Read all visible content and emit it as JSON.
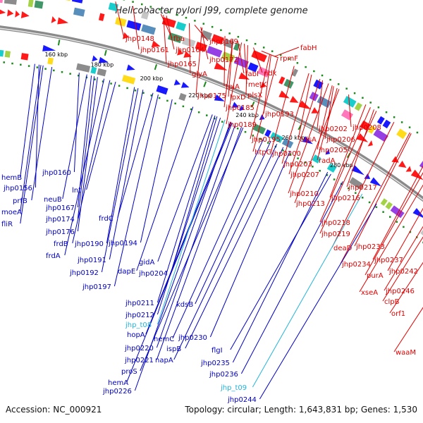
{
  "title": "Helicobacter pylori J99, complete genome",
  "footer": {
    "accession": "Accession: NC_000921",
    "summary": "Topology: circular; Length: 1,643,831 bp; Genes: 1,530"
  },
  "colors": {
    "forward_label": "#e00000",
    "reverse_label": "#0000c0",
    "rna_label": "#22b4d8",
    "backbone": "#8a8a8a",
    "tick": "#1a8a1a"
  },
  "ticks": [
    "160 kbp",
    "180 kbp",
    "200 kbp",
    "220 kbp",
    "240 kbp",
    "260 kbp",
    "280 kbp"
  ],
  "forward_genes": [
    "jhp0148",
    "fba",
    "jhp0161",
    "jhp0164",
    "jhp0169",
    "jhp0165",
    "jhp0172",
    "glyA",
    "fabH",
    "rpmF",
    "fabI",
    "ndk",
    "metK",
    "tpiA",
    "lpxD",
    "plsX",
    "jhp0175",
    "jhp0185",
    "jhp0193",
    "jhp0189",
    "jhp0195",
    "cdsA",
    "jhp0202",
    "jhp0208",
    "htpG",
    "jhp0200",
    "jhp0206",
    "jhp0205",
    "jhp0203",
    "radA",
    "jhp0207",
    "jhp0210",
    "jhp0217",
    "jhp0216",
    "jhp0213",
    "jhp0218",
    "jhp0219",
    "deaD",
    "jhp0233",
    "jhp0234",
    "jhp0237",
    "purA",
    "jhp0242",
    "xseA",
    "jhp0246",
    "clpB",
    "orf1",
    "waaM"
  ],
  "reverse_genes": [
    "jhp0160",
    "hemB",
    "jhp0156",
    "lnt",
    "neuB",
    "prfB",
    "jhp0167",
    "moeA",
    "fliR",
    "jhp0174",
    "jhp0176",
    "frdC",
    "frdB",
    "jhp0190",
    "jhp0194",
    "frdA",
    "jhp0191",
    "dapE",
    "gidA",
    "jhp0192",
    "jhp0204",
    "jhp0197",
    "jhp0211",
    "kdsB",
    "jhp0212",
    "hopA",
    "hemC",
    "jhp0230",
    "jhp0220",
    "ispB",
    "flgI",
    "jhp0221",
    "napA",
    "jhp0235",
    "proS",
    "jhp0236",
    "hemA",
    "jhp0226",
    "jhp0244"
  ],
  "rna_genes": [
    "jhp_t08",
    "jhp_t09"
  ]
}
